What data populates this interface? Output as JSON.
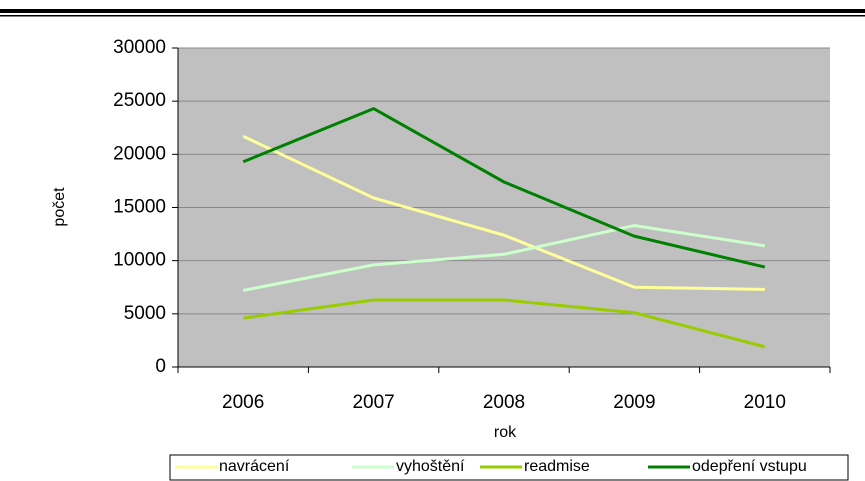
{
  "chart_data": {
    "type": "line",
    "x_label": "rok",
    "y_label": "počet",
    "categories": [
      "2006",
      "2007",
      "2008",
      "2009",
      "2010"
    ],
    "series": [
      {
        "name": "navrácení",
        "color": "#ffff99",
        "values": [
          21700,
          15900,
          12400,
          7500,
          7300
        ]
      },
      {
        "name": "vyhoštění",
        "color": "#ccffcc",
        "values": [
          7200,
          9600,
          10600,
          13300,
          11400
        ]
      },
      {
        "name": "readmise",
        "color": "#99cc00",
        "values": [
          4600,
          6300,
          6300,
          5100,
          1900
        ]
      },
      {
        "name": "odepření vstupu",
        "color": "#008000",
        "values": [
          19300,
          24300,
          17400,
          12300,
          9400
        ]
      }
    ],
    "ylim": [
      0,
      30000
    ],
    "yticks": [
      0,
      5000,
      10000,
      15000,
      20000,
      25000,
      30000
    ],
    "grid": true,
    "legend": "bottom"
  }
}
